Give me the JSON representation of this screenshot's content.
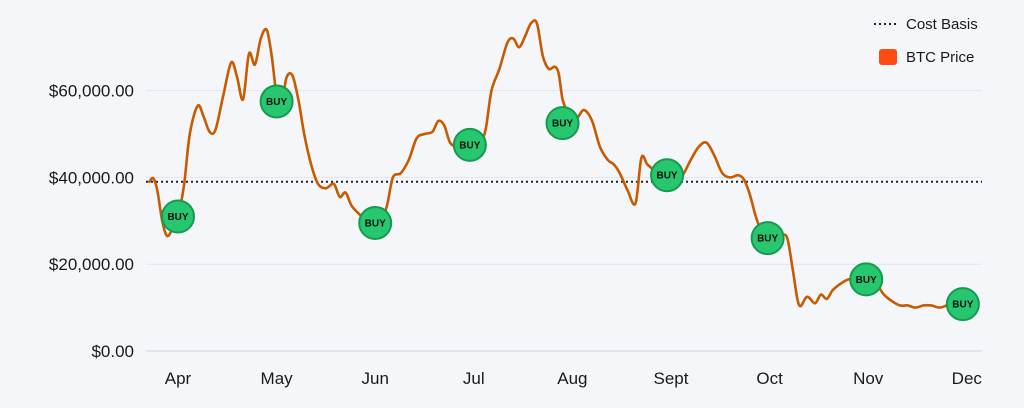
{
  "chart_data": {
    "type": "line",
    "colors": {
      "price_line": "#c85a00",
      "price_legend": "#ff4a12",
      "cost_basis": "#1b2233",
      "grid": "#dfe6f0",
      "buy_fill": "#27c76f",
      "buy_stroke": "#159a50"
    },
    "ylim": [
      0,
      76000
    ],
    "y_ticks": [
      {
        "value": 0,
        "label": "$0.00"
      },
      {
        "value": 20000,
        "label": "$20,000.00"
      },
      {
        "value": 40000,
        "label": "$40,000.00"
      },
      {
        "value": 60000,
        "label": "$60,000.00"
      }
    ],
    "x_ticks": [
      {
        "value": 0,
        "label": "Apr"
      },
      {
        "value": 1,
        "label": "May"
      },
      {
        "value": 2,
        "label": "Jun"
      },
      {
        "value": 3,
        "label": "Jul"
      },
      {
        "value": 4,
        "label": "Aug"
      },
      {
        "value": 5,
        "label": "Sept"
      },
      {
        "value": 6,
        "label": "Oct"
      },
      {
        "value": 7,
        "label": "Nov"
      },
      {
        "value": 8,
        "label": "Dec"
      }
    ],
    "xlim": [
      -0.3,
      8.1
    ],
    "legend": {
      "placement": "top-right",
      "cost_basis_label": "Cost Basis",
      "price_label": "BTC Price"
    },
    "cost_basis": 39000,
    "series": [
      {
        "name": "BTC Price",
        "points": [
          [
            -0.29,
            39000
          ],
          [
            -0.25,
            39800
          ],
          [
            -0.21,
            37000
          ],
          [
            -0.16,
            30000
          ],
          [
            -0.11,
            26500
          ],
          [
            -0.05,
            28500
          ],
          [
            0.0,
            31000
          ],
          [
            0.06,
            38000
          ],
          [
            0.12,
            50000
          ],
          [
            0.2,
            56500
          ],
          [
            0.26,
            54000
          ],
          [
            0.32,
            50500
          ],
          [
            0.38,
            51000
          ],
          [
            0.46,
            59000
          ],
          [
            0.54,
            66500
          ],
          [
            0.6,
            63000
          ],
          [
            0.66,
            58000
          ],
          [
            0.72,
            68500
          ],
          [
            0.78,
            66000
          ],
          [
            0.84,
            72000
          ],
          [
            0.9,
            74000
          ],
          [
            0.95,
            68000
          ],
          [
            1.0,
            59000
          ],
          [
            1.05,
            57000
          ],
          [
            1.1,
            63000
          ],
          [
            1.16,
            63500
          ],
          [
            1.22,
            58000
          ],
          [
            1.28,
            50000
          ],
          [
            1.35,
            43000
          ],
          [
            1.42,
            38500
          ],
          [
            1.5,
            37500
          ],
          [
            1.58,
            38500
          ],
          [
            1.64,
            35500
          ],
          [
            1.7,
            36500
          ],
          [
            1.76,
            33500
          ],
          [
            1.84,
            31500
          ],
          [
            1.92,
            30000
          ],
          [
            2.0,
            29500
          ],
          [
            2.06,
            30000
          ],
          [
            2.12,
            33500
          ],
          [
            2.18,
            40000
          ],
          [
            2.26,
            41000
          ],
          [
            2.34,
            44000
          ],
          [
            2.42,
            49000
          ],
          [
            2.5,
            50000
          ],
          [
            2.58,
            50500
          ],
          [
            2.64,
            53000
          ],
          [
            2.7,
            52000
          ],
          [
            2.76,
            48000
          ],
          [
            2.84,
            47000
          ],
          [
            2.9,
            47500
          ],
          [
            3.0,
            47000
          ],
          [
            3.06,
            47500
          ],
          [
            3.12,
            51000
          ],
          [
            3.18,
            60000
          ],
          [
            3.26,
            65000
          ],
          [
            3.34,
            71000
          ],
          [
            3.4,
            72000
          ],
          [
            3.46,
            70000
          ],
          [
            3.52,
            72500
          ],
          [
            3.58,
            75500
          ],
          [
            3.64,
            75500
          ],
          [
            3.7,
            68000
          ],
          [
            3.76,
            65000
          ],
          [
            3.82,
            65500
          ],
          [
            3.86,
            64000
          ],
          [
            3.9,
            58000
          ],
          [
            3.95,
            55000
          ],
          [
            4.0,
            52000
          ],
          [
            4.06,
            54000
          ],
          [
            4.12,
            55500
          ],
          [
            4.2,
            53000
          ],
          [
            4.28,
            47000
          ],
          [
            4.36,
            44000
          ],
          [
            4.42,
            43000
          ],
          [
            4.48,
            41000
          ],
          [
            4.56,
            37000
          ],
          [
            4.64,
            34000
          ],
          [
            4.7,
            44500
          ],
          [
            4.76,
            43000
          ],
          [
            4.84,
            41500
          ],
          [
            4.92,
            41000
          ],
          [
            5.0,
            40000
          ],
          [
            5.06,
            39000
          ],
          [
            5.12,
            40500
          ],
          [
            5.2,
            44000
          ],
          [
            5.28,
            47000
          ],
          [
            5.36,
            48000
          ],
          [
            5.44,
            45000
          ],
          [
            5.52,
            41000
          ],
          [
            5.6,
            40000
          ],
          [
            5.68,
            40500
          ],
          [
            5.74,
            39500
          ],
          [
            5.8,
            36000
          ],
          [
            5.86,
            31000
          ],
          [
            5.92,
            27500
          ],
          [
            6.0,
            26000
          ],
          [
            6.06,
            25500
          ],
          [
            6.12,
            26500
          ],
          [
            6.18,
            26000
          ],
          [
            6.24,
            18000
          ],
          [
            6.3,
            10500
          ],
          [
            6.38,
            12500
          ],
          [
            6.46,
            11000
          ],
          [
            6.52,
            13000
          ],
          [
            6.58,
            12000
          ],
          [
            6.64,
            14000
          ],
          [
            6.72,
            15500
          ],
          [
            6.8,
            16500
          ],
          [
            6.88,
            16500
          ],
          [
            6.96,
            16000
          ],
          [
            7.0,
            16000
          ],
          [
            7.08,
            15500
          ],
          [
            7.16,
            13000
          ],
          [
            7.24,
            11500
          ],
          [
            7.32,
            10500
          ],
          [
            7.4,
            10500
          ],
          [
            7.48,
            10000
          ],
          [
            7.56,
            10500
          ],
          [
            7.64,
            10500
          ],
          [
            7.72,
            10000
          ],
          [
            7.8,
            10500
          ],
          [
            7.9,
            11000
          ],
          [
            8.0,
            10800
          ],
          [
            8.05,
            10800
          ]
        ]
      }
    ],
    "buy_markers": [
      {
        "x": 0.0,
        "y": 31000,
        "label": "BUY"
      },
      {
        "x": 1.0,
        "y": 57500,
        "label": "BUY"
      },
      {
        "x": 2.0,
        "y": 29500,
        "label": "BUY"
      },
      {
        "x": 2.96,
        "y": 47500,
        "label": "BUY"
      },
      {
        "x": 3.9,
        "y": 52500,
        "label": "BUY"
      },
      {
        "x": 4.96,
        "y": 40500,
        "label": "BUY"
      },
      {
        "x": 5.98,
        "y": 26000,
        "label": "BUY"
      },
      {
        "x": 6.98,
        "y": 16500,
        "label": "BUY"
      },
      {
        "x": 7.96,
        "y": 10800,
        "label": "BUY"
      }
    ]
  }
}
